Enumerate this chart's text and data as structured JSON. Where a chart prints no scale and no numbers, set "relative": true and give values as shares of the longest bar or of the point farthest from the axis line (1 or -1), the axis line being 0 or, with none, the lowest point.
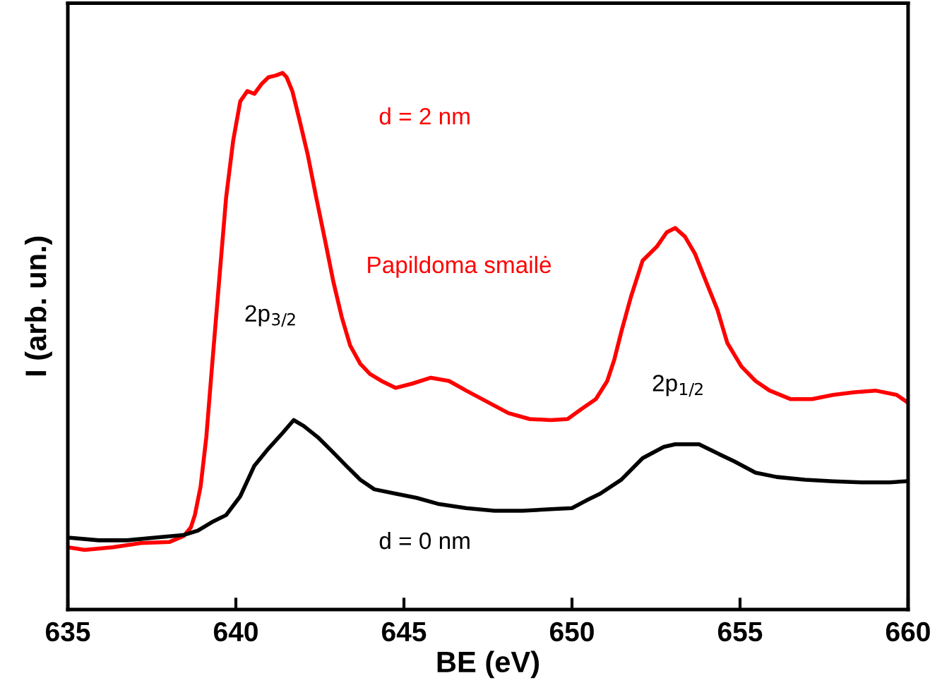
{
  "chart_data": {
    "type": "line",
    "relative": true,
    "xlabel": "BE (eV)",
    "ylabel": "I (arb. un.)",
    "xlim": [
      635,
      660
    ],
    "xticks": [
      635,
      640,
      645,
      650,
      655,
      660
    ],
    "grid": false,
    "legend": false,
    "marker": "none",
    "line_style": "solid",
    "annotations": [
      "Papildoma smailė",
      "2p$_{3/2}$",
      "2p$_{1/2}$"
    ],
    "series": [
      {
        "name": "d = 2 nm",
        "color": "#ff0000",
        "x": [
          635.0,
          635.5,
          636.34,
          637.18,
          638.03,
          638.45,
          638.66,
          638.78,
          638.95,
          639.12,
          639.29,
          639.5,
          639.71,
          639.92,
          640.13,
          640.34,
          640.55,
          640.76,
          640.97,
          641.18,
          641.39,
          641.51,
          641.68,
          641.89,
          642.14,
          642.39,
          642.65,
          642.9,
          643.15,
          643.4,
          643.7,
          643.99,
          644.33,
          644.75,
          645.25,
          645.8,
          646.34,
          646.85,
          647.48,
          648.11,
          648.74,
          649.37,
          649.87,
          650.29,
          650.71,
          651.05,
          651.26,
          651.47,
          651.76,
          652.1,
          652.52,
          652.82,
          653.07,
          653.36,
          653.66,
          653.99,
          654.33,
          654.62,
          655.04,
          655.46,
          655.88,
          656.51,
          657.14,
          657.77,
          658.4,
          659.03,
          659.66,
          659.96
        ],
        "values": [
          0.116,
          0.111,
          0.116,
          0.124,
          0.126,
          0.137,
          0.153,
          0.176,
          0.229,
          0.321,
          0.453,
          0.611,
          0.768,
          0.874,
          0.947,
          0.966,
          0.961,
          0.979,
          0.992,
          0.995,
          1.0,
          0.992,
          0.966,
          0.913,
          0.847,
          0.768,
          0.689,
          0.611,
          0.545,
          0.492,
          0.458,
          0.439,
          0.426,
          0.413,
          0.421,
          0.432,
          0.426,
          0.408,
          0.387,
          0.366,
          0.355,
          0.353,
          0.355,
          0.374,
          0.392,
          0.426,
          0.466,
          0.518,
          0.584,
          0.65,
          0.676,
          0.703,
          0.711,
          0.695,
          0.663,
          0.611,
          0.558,
          0.497,
          0.453,
          0.426,
          0.408,
          0.392,
          0.392,
          0.4,
          0.405,
          0.408,
          0.4,
          0.387
        ]
      },
      {
        "name": "d = 0 nm",
        "color": "#000000",
        "x": [
          635.0,
          635.92,
          636.76,
          637.61,
          638.45,
          638.87,
          639.29,
          639.71,
          640.13,
          640.55,
          640.97,
          641.39,
          641.72,
          642.02,
          642.44,
          642.86,
          643.28,
          643.7,
          644.12,
          644.75,
          645.38,
          646.01,
          646.85,
          647.69,
          648.53,
          649.37,
          650.0,
          650.42,
          650.84,
          651.47,
          652.1,
          652.73,
          653.07,
          653.36,
          653.78,
          654.2,
          654.83,
          655.46,
          656.09,
          656.93,
          657.77,
          658.61,
          659.45,
          659.96
        ],
        "values": [
          0.134,
          0.129,
          0.129,
          0.134,
          0.139,
          0.147,
          0.163,
          0.176,
          0.211,
          0.268,
          0.3,
          0.329,
          0.353,
          0.342,
          0.321,
          0.295,
          0.268,
          0.242,
          0.224,
          0.216,
          0.208,
          0.197,
          0.189,
          0.184,
          0.184,
          0.187,
          0.189,
          0.203,
          0.216,
          0.242,
          0.282,
          0.303,
          0.308,
          0.308,
          0.308,
          0.295,
          0.276,
          0.255,
          0.247,
          0.242,
          0.239,
          0.237,
          0.237,
          0.239
        ]
      }
    ]
  }
}
